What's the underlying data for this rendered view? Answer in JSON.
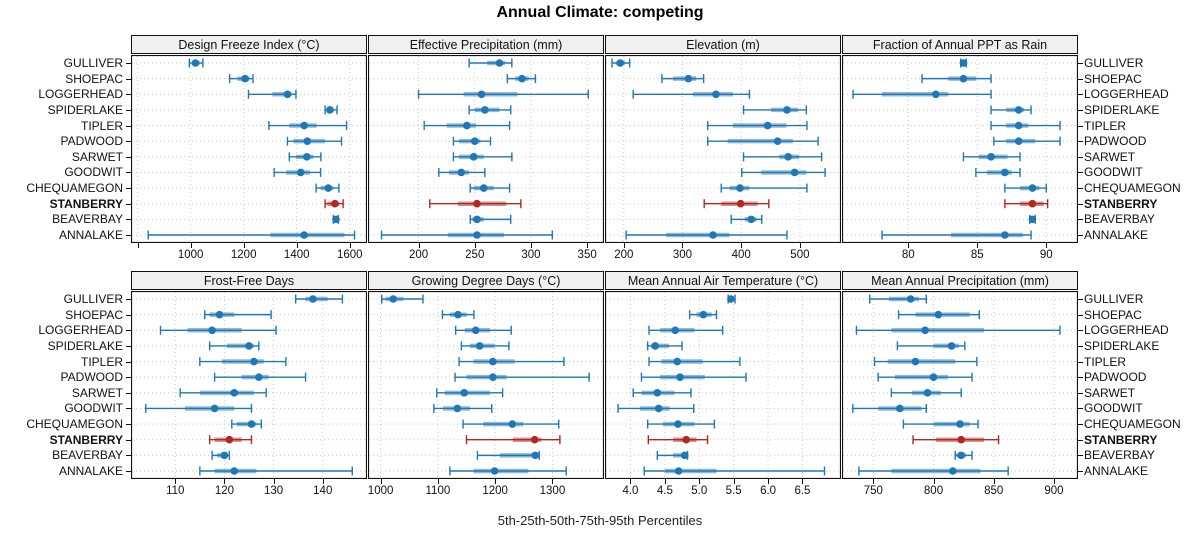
{
  "title": "Annual Climate: competing",
  "footer": "5th-25th-50th-75th-95th Percentiles",
  "highlight_site": "STANBERRY",
  "colors": {
    "normal": "#1f77b4",
    "normal_band": "rgba(31,119,180,0.5)",
    "highlight": "#b2271f",
    "highlight_band": "rgba(178,39,31,0.5)",
    "grid": "#c9c9c9",
    "header_bg": "#f0f0f0",
    "border": "#111111",
    "text": "#111111"
  },
  "sites": [
    "GULLIVER",
    "SHOEPAC",
    "LOGGERHEAD",
    "SPIDERLAKE",
    "TIPLER",
    "PADWOOD",
    "SARWET",
    "GOODWIT",
    "CHEQUAMEGON",
    "STANBERRY",
    "BEAVERBAY",
    "ANNALAKE"
  ],
  "chart_data": {
    "type": "scatter",
    "subtype": "percentile-interval trellis (dot = 50th, thick band = 25th-75th, thin whisker with caps = 5th-95th)",
    "percentiles": [
      5,
      25,
      50,
      75,
      95
    ],
    "categories": [
      "GULLIVER",
      "SHOEPAC",
      "LOGGERHEAD",
      "SPIDERLAKE",
      "TIPLER",
      "PADWOOD",
      "SARWET",
      "GOODWIT",
      "CHEQUAMEGON",
      "STANBERRY",
      "BEAVERBAY",
      "ANNALAKE"
    ],
    "highlight": "STANBERRY",
    "legend_position": "none",
    "grid": "dotted",
    "panels": [
      {
        "title": "Design Freeze Index (°C)",
        "grid_position": [
          0,
          0
        ],
        "xlim": [
          775,
          1665
        ],
        "ticks": [
          800,
          1000,
          1200,
          1400,
          1600
        ],
        "tick_labels": [
          "",
          "1000",
          "1200",
          "1400",
          "1600"
        ],
        "values": {
          "GULLIVER": [
            995,
            1005,
            1018,
            1034,
            1046
          ],
          "SHOEPAC": [
            1147,
            1177,
            1205,
            1222,
            1235
          ],
          "LOGGERHEAD": [
            1218,
            1308,
            1365,
            1381,
            1397
          ],
          "SPIDERLAKE": [
            1507,
            1515,
            1525,
            1540,
            1552
          ],
          "TIPLER": [
            1295,
            1372,
            1428,
            1475,
            1588
          ],
          "PADWOOD": [
            1365,
            1387,
            1440,
            1507,
            1569
          ],
          "SARWET": [
            1372,
            1397,
            1438,
            1462,
            1491
          ],
          "GOODWIT": [
            1315,
            1360,
            1415,
            1450,
            1490
          ],
          "CHEQUAMEGON": [
            1473,
            1490,
            1519,
            1538,
            1559
          ],
          "STANBERRY": [
            1507,
            1515,
            1544,
            1560,
            1575
          ],
          "BEAVERBAY": [
            1538,
            1542,
            1548,
            1553,
            1557
          ],
          "ANNALAKE": [
            840,
            1300,
            1428,
            1580,
            1618
          ]
        }
      },
      {
        "title": "Effective Precipitation (mm)",
        "grid_position": [
          0,
          1
        ],
        "xlim": [
          155,
          365
        ],
        "ticks": [
          200,
          250,
          300,
          350
        ],
        "tick_labels": [
          "200",
          "250",
          "300",
          "350"
        ],
        "values": {
          "GULLIVER": [
            245,
            261,
            272,
            277,
            283
          ],
          "SHOEPAC": [
            279,
            286,
            292,
            298,
            304
          ],
          "LOGGERHEAD": [
            200,
            240,
            256,
            288,
            351
          ],
          "SPIDERLAKE": [
            245,
            250,
            259,
            272,
            282
          ],
          "TIPLER": [
            205,
            225,
            243,
            251,
            281
          ],
          "PADWOOD": [
            231,
            236,
            250,
            255,
            264
          ],
          "SARWET": [
            231,
            236,
            249,
            258,
            283
          ],
          "GOODWIT": [
            218,
            227,
            238,
            245,
            259
          ],
          "CHEQUAMEGON": [
            246,
            249,
            258,
            267,
            281
          ],
          "STANBERRY": [
            210,
            235,
            252,
            278,
            291
          ],
          "BEAVERBAY": [
            246,
            248,
            252,
            258,
            282
          ],
          "ANNALAKE": [
            167,
            226,
            252,
            276,
            319
          ]
        }
      },
      {
        "title": "Elevation (m)",
        "grid_position": [
          0,
          2
        ],
        "xlim": [
          168,
          570
        ],
        "ticks": [
          200,
          300,
          400,
          500
        ],
        "tick_labels": [
          "200",
          "300",
          "400",
          "500"
        ],
        "values": {
          "GULLIVER": [
            180,
            187,
            194,
            202,
            210
          ],
          "SHOEPAC": [
            265,
            284,
            310,
            323,
            336
          ],
          "LOGGERHEAD": [
            216,
            318,
            357,
            386,
            414
          ],
          "SPIDERLAKE": [
            404,
            451,
            478,
            497,
            511
          ],
          "TIPLER": [
            343,
            386,
            445,
            477,
            512
          ],
          "PADWOOD": [
            343,
            377,
            462,
            488,
            531
          ],
          "SARWET": [
            404,
            465,
            480,
            499,
            537
          ],
          "GOODWIT": [
            401,
            434,
            491,
            511,
            543
          ],
          "CHEQUAMEGON": [
            366,
            380,
            398,
            414,
            512
          ],
          "STANBERRY": [
            337,
            366,
            399,
            428,
            447
          ],
          "BEAVERBAY": [
            383,
            406,
            417,
            426,
            435
          ],
          "ANNALAKE": [
            204,
            272,
            352,
            380,
            478
          ]
        }
      },
      {
        "title": "Fraction of Annual PPT as Rain",
        "grid_position": [
          0,
          3
        ],
        "xlim": [
          75.2,
          92.3
        ],
        "ticks": [
          80,
          85,
          90
        ],
        "tick_labels": [
          "80",
          "85",
          "90"
        ],
        "values": {
          "GULLIVER": [
            83.8,
            83.9,
            84.0,
            84.1,
            84.2
          ],
          "SHOEPAC": [
            81.0,
            82.9,
            84.0,
            84.9,
            86.0
          ],
          "LOGGERHEAD": [
            76.0,
            78.1,
            82.0,
            82.9,
            86.0
          ],
          "SPIDERLAKE": [
            86.0,
            87.1,
            88.0,
            88.4,
            88.9
          ],
          "TIPLER": [
            86.0,
            87.1,
            88.0,
            88.7,
            91.0
          ],
          "PADWOOD": [
            86.2,
            87.1,
            88.0,
            89.2,
            91.0
          ],
          "SARWET": [
            84.0,
            85.1,
            86.0,
            87.2,
            88.1
          ],
          "GOODWIT": [
            84.9,
            85.7,
            87.0,
            87.5,
            88.1
          ],
          "CHEQUAMEGON": [
            87.0,
            88.1,
            89.0,
            89.5,
            90.0
          ],
          "STANBERRY": [
            87.0,
            88.1,
            89.0,
            89.8,
            90.1
          ],
          "BEAVERBAY": [
            88.8,
            88.9,
            89.0,
            89.1,
            89.2
          ],
          "ANNALAKE": [
            78.1,
            83.1,
            87.0,
            88.3,
            88.9
          ]
        }
      },
      {
        "title": "Frost-Free Days",
        "grid_position": [
          1,
          0
        ],
        "xlim": [
          101,
          149
        ],
        "ticks": [
          110,
          120,
          130,
          140
        ],
        "tick_labels": [
          "110",
          "120",
          "130",
          "140"
        ],
        "values": {
          "GULLIVER": [
            134.5,
            136.5,
            138,
            141,
            144
          ],
          "SHOEPAC": [
            116,
            117,
            119,
            122,
            129.5
          ],
          "LOGGERHEAD": [
            107,
            112.5,
            117.5,
            123.5,
            130.5
          ],
          "SPIDERLAKE": [
            117,
            120.5,
            125,
            126,
            127
          ],
          "TIPLER": [
            115,
            119.5,
            126,
            128,
            132.5
          ],
          "PADWOOD": [
            118,
            123.5,
            127,
            129,
            136.5
          ],
          "SARWET": [
            111,
            115,
            122,
            126,
            128.5
          ],
          "GOODWIT": [
            104,
            112,
            118,
            122,
            125.5
          ],
          "CHEQUAMEGON": [
            121.5,
            122.5,
            125.5,
            126.5,
            127.5
          ],
          "STANBERRY": [
            117,
            118,
            121,
            123.5,
            125.5
          ],
          "BEAVERBAY": [
            117.5,
            118.5,
            120,
            120.5,
            121
          ],
          "ANNALAKE": [
            115,
            118,
            122,
            126.5,
            146
          ]
        }
      },
      {
        "title": "Growing Degree Days (°C)",
        "grid_position": [
          1,
          1
        ],
        "xlim": [
          978,
          1390
        ],
        "ticks": [
          1000,
          1100,
          1200,
          1300
        ],
        "tick_labels": [
          "1000",
          "1100",
          "1200",
          "1300"
        ],
        "values": {
          "GULLIVER": [
            1002,
            1009,
            1022,
            1040,
            1074
          ],
          "SHOEPAC": [
            1108,
            1121,
            1135,
            1150,
            1163
          ],
          "LOGGERHEAD": [
            1131,
            1147,
            1166,
            1191,
            1228
          ],
          "SPIDERLAKE": [
            1141,
            1156,
            1173,
            1199,
            1224
          ],
          "TIPLER": [
            1137,
            1162,
            1196,
            1234,
            1320
          ],
          "PADWOOD": [
            1130,
            1150,
            1196,
            1220,
            1364
          ],
          "SARWET": [
            1098,
            1112,
            1146,
            1191,
            1213
          ],
          "GOODWIT": [
            1093,
            1109,
            1134,
            1156,
            1194
          ],
          "CHEQUAMEGON": [
            1144,
            1179,
            1230,
            1249,
            1311
          ],
          "STANBERRY": [
            1150,
            1231,
            1269,
            1281,
            1313
          ],
          "BEAVERBAY": [
            1169,
            1208,
            1270,
            1275,
            1277
          ],
          "ANNALAKE": [
            1121,
            1162,
            1199,
            1258,
            1324
          ]
        }
      },
      {
        "title": "Mean Annual Air Temperature (°C)",
        "grid_position": [
          1,
          2
        ],
        "xlim": [
          3.63,
          7.06
        ],
        "ticks": [
          4.0,
          4.5,
          5.0,
          5.5,
          6.0,
          6.5
        ],
        "tick_labels": [
          "4.0",
          "4.5",
          "5.0",
          "5.5",
          "6.0",
          "6.5"
        ],
        "values": {
          "GULLIVER": [
            5.42,
            5.44,
            5.46,
            5.49,
            5.52
          ],
          "SHOEPAC": [
            4.86,
            4.96,
            5.06,
            5.18,
            5.25
          ],
          "LOGGERHEAD": [
            4.27,
            4.43,
            4.65,
            4.93,
            5.34
          ],
          "SPIDERLAKE": [
            4.25,
            4.3,
            4.36,
            4.56,
            4.75
          ],
          "TIPLER": [
            4.27,
            4.45,
            4.68,
            5.05,
            5.59
          ],
          "PADWOOD": [
            4.16,
            4.43,
            4.72,
            5.08,
            5.68
          ],
          "SARWET": [
            4.04,
            4.16,
            4.39,
            4.64,
            4.88
          ],
          "GOODWIT": [
            3.82,
            4.14,
            4.41,
            4.57,
            4.92
          ],
          "CHEQUAMEGON": [
            4.25,
            4.47,
            4.69,
            4.93,
            5.22
          ],
          "STANBERRY": [
            4.26,
            4.62,
            4.81,
            4.96,
            5.12
          ],
          "BEAVERBAY": [
            4.39,
            4.62,
            4.79,
            4.81,
            4.83
          ],
          "ANNALAKE": [
            4.2,
            4.5,
            4.7,
            5.25,
            6.82
          ]
        }
      },
      {
        "title": "Mean Annual Precipitation (mm)",
        "grid_position": [
          1,
          3
        ],
        "xlim": [
          724,
          920
        ],
        "ticks": [
          750,
          800,
          850,
          900
        ],
        "tick_labels": [
          "750",
          "800",
          "850",
          "900"
        ],
        "values": {
          "GULLIVER": [
            747,
            763,
            781,
            788,
            794
          ],
          "SHOEPAC": [
            771,
            785,
            804,
            830,
            838
          ],
          "LOGGERHEAD": [
            736,
            765,
            793,
            842,
            905
          ],
          "SPIDERLAKE": [
            770,
            800,
            815,
            821,
            826
          ],
          "TIPLER": [
            751,
            762,
            785,
            818,
            836
          ],
          "PADWOOD": [
            754,
            768,
            800,
            812,
            832
          ],
          "SARWET": [
            765,
            782,
            795,
            806,
            823
          ],
          "GOODWIT": [
            733,
            754,
            772,
            790,
            794
          ],
          "CHEQUAMEGON": [
            775,
            800,
            822,
            830,
            837
          ],
          "STANBERRY": [
            783,
            802,
            823,
            842,
            854
          ],
          "BEAVERBAY": [
            818,
            819,
            823,
            827,
            832
          ],
          "ANNALAKE": [
            738,
            765,
            816,
            839,
            862
          ]
        }
      }
    ]
  }
}
